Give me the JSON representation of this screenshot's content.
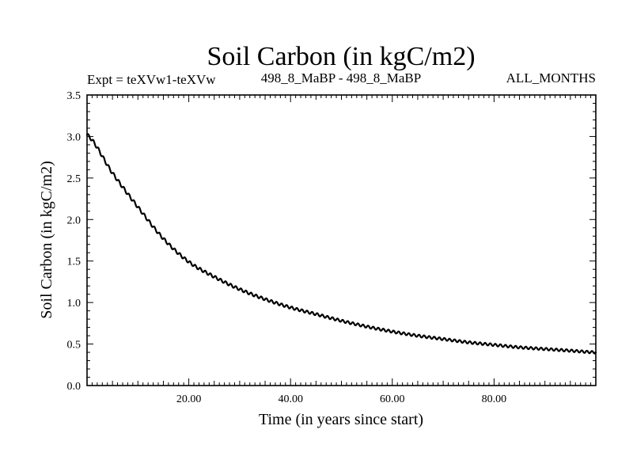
{
  "chart_data": {
    "type": "line",
    "title": "Soil Carbon (in kgC/m2)",
    "subtitle_left": "Expt = teXVw1-teXVw",
    "subtitle_center": "498_8_MaBP - 498_8_MaBP",
    "subtitle_right": "ALL_MONTHS",
    "xlabel": "Time (in years since start)",
    "ylabel": "Soil Carbon (in kgC/m2)",
    "xlim": [
      0,
      100
    ],
    "ylim": [
      0,
      3.5
    ],
    "x_ticks": [
      {
        "value": 20,
        "label": "20.00"
      },
      {
        "value": 40,
        "label": "40.00"
      },
      {
        "value": 60,
        "label": "60.00"
      },
      {
        "value": 80,
        "label": "80.00"
      }
    ],
    "y_ticks": [
      {
        "value": 0.0,
        "label": "0.0"
      },
      {
        "value": 0.5,
        "label": "0.5"
      },
      {
        "value": 1.0,
        "label": "1.0"
      },
      {
        "value": 1.5,
        "label": "1.5"
      },
      {
        "value": 2.0,
        "label": "2.0"
      },
      {
        "value": 2.5,
        "label": "2.5"
      },
      {
        "value": 3.0,
        "label": "3.0"
      },
      {
        "value": 3.5,
        "label": "3.5"
      }
    ],
    "series": [
      {
        "name": "Soil Carbon",
        "color": "#000000",
        "x": [
          0,
          5,
          10,
          15,
          20,
          25,
          30,
          35,
          40,
          45,
          50,
          55,
          60,
          65,
          70,
          75,
          80,
          85,
          90,
          95,
          100
        ],
        "y": [
          3.02,
          2.56,
          2.15,
          1.77,
          1.49,
          1.31,
          1.16,
          1.04,
          0.94,
          0.86,
          0.78,
          0.71,
          0.65,
          0.6,
          0.56,
          0.52,
          0.49,
          0.46,
          0.44,
          0.42,
          0.4
        ],
        "seasonal_amplitude": 0.02,
        "cycles_per_year": 1
      }
    ]
  }
}
